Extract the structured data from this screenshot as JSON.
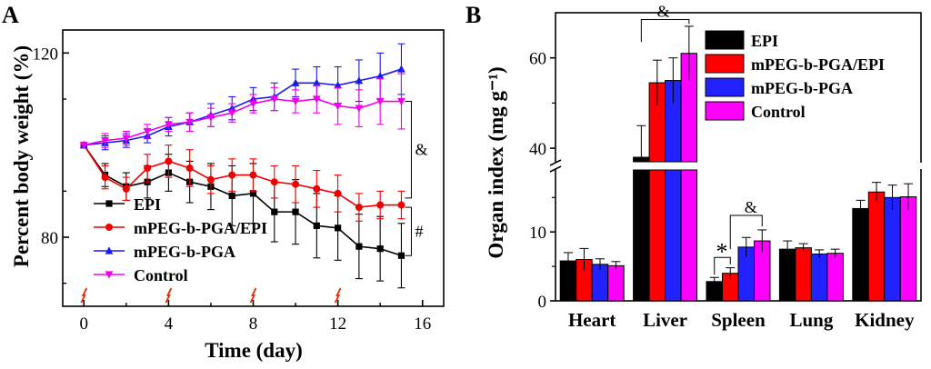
{
  "chart_data": [
    {
      "panel_label": "A",
      "type": "line",
      "xlabel": "Time (day)",
      "ylabel": "Percent body weight (%)",
      "xlim": [
        -1,
        17
      ],
      "ylim": [
        65,
        125
      ],
      "x_ticks": [
        0,
        4,
        8,
        12,
        16
      ],
      "y_ticks": [
        80,
        120
      ],
      "x": [
        0,
        1,
        2,
        3,
        4,
        5,
        6,
        7,
        8,
        9,
        10,
        11,
        12,
        13,
        14,
        15
      ],
      "series": [
        {
          "name": "EPI",
          "color": "#000000",
          "marker": "square",
          "values": [
            100,
            93.5,
            91,
            92,
            94,
            92,
            91,
            89,
            89.5,
            85.5,
            85.5,
            82.5,
            82,
            78,
            77.5,
            76
          ],
          "errors": [
            0,
            2.5,
            3,
            3.5,
            4,
            4.5,
            5,
            6.5,
            6.5,
            6.5,
            7,
            7,
            7,
            7,
            7,
            7
          ]
        },
        {
          "name": "mPEG-b-PGA/EPI",
          "color": "#ee0000",
          "marker": "circle",
          "values": [
            100,
            93,
            90.5,
            95,
            96.5,
            95,
            92.5,
            93.5,
            93.5,
            92,
            91.5,
            90.5,
            89.5,
            86.5,
            87,
            87
          ],
          "errors": [
            0,
            2.5,
            2.5,
            3,
            3.5,
            4,
            3,
            3.5,
            3.5,
            3.5,
            4,
            4,
            4,
            3,
            3,
            3
          ]
        },
        {
          "name": "mPEG-b-PGA",
          "color": "#1a1aee",
          "marker": "triangle-up",
          "values": [
            100,
            100.5,
            101,
            102,
            104,
            105,
            106.5,
            108,
            110,
            110.5,
            113.5,
            113.5,
            113,
            114,
            115,
            116.5
          ],
          "errors": [
            0,
            1.5,
            1.5,
            1.5,
            2,
            2,
            2.5,
            2.5,
            2.5,
            3,
            3,
            3.5,
            4,
            4.5,
            5,
            5.5
          ]
        },
        {
          "name": "Control",
          "color": "#ee00ee",
          "marker": "triangle-down",
          "values": [
            100,
            101,
            101.5,
            103,
            104.5,
            105,
            106,
            107,
            109,
            110,
            109.5,
            110,
            108.5,
            108,
            109.5,
            109.5
          ],
          "errors": [
            0,
            1.5,
            1.5,
            1.5,
            1.5,
            2,
            2,
            2,
            2,
            2.5,
            2.5,
            3,
            4,
            4,
            5,
            6
          ]
        }
      ],
      "dose_arrows_at_days": [
        0,
        4,
        8,
        12
      ],
      "annotations": [
        {
          "text": "&",
          "between": [
            "mPEG-b-PGA/EPI",
            "Control"
          ]
        },
        {
          "text": "#",
          "between": [
            "EPI",
            "mPEG-b-PGA/EPI"
          ]
        }
      ],
      "legend": {
        "placement": "bottom-left"
      }
    },
    {
      "panel_label": "B",
      "type": "bar",
      "ylabel": "Organ index (mg g⁻¹)",
      "categories": [
        "Heart",
        "Liver",
        "Spleen",
        "Lung",
        "Kidney"
      ],
      "broken_axis": {
        "lower_range": [
          0,
          19
        ],
        "upper_range": [
          37,
          70
        ],
        "lower_ticks": [
          0,
          10
        ],
        "upper_ticks": [
          40,
          60
        ]
      },
      "series": [
        {
          "name": "EPI",
          "color": "#000000",
          "values": [
            5.8,
            38,
            2.8,
            7.5,
            13.4
          ],
          "errors": [
            1.2,
            7,
            0.6,
            1.2,
            1.2
          ]
        },
        {
          "name": "mPEG-b-PGA/EPI",
          "color": "#ff0000",
          "values": [
            6.0,
            54.5,
            4.0,
            7.7,
            15.8
          ],
          "errors": [
            1.6,
            5,
            0.8,
            0.6,
            1.4
          ]
        },
        {
          "name": "mPEG-b-PGA",
          "color": "#2222ff",
          "values": [
            5.3,
            55,
            7.8,
            6.8,
            15.0
          ],
          "errors": [
            0.8,
            5,
            1.4,
            0.6,
            1.8
          ]
        },
        {
          "name": "Control",
          "color": "#ff00ff",
          "values": [
            5.1,
            61,
            8.7,
            6.9,
            15.1
          ],
          "errors": [
            0.6,
            6,
            1.6,
            0.6,
            1.9
          ]
        }
      ],
      "annotations": [
        {
          "text": "&",
          "category": "Liver",
          "between": [
            "EPI",
            "Control"
          ]
        },
        {
          "text": "&",
          "category": "Spleen",
          "between": [
            "mPEG-b-PGA/EPI",
            "Control"
          ]
        },
        {
          "text": "*",
          "category": "Spleen",
          "between": [
            "EPI",
            "mPEG-b-PGA/EPI"
          ]
        }
      ],
      "legend": {
        "placement": "top-right"
      }
    }
  ]
}
